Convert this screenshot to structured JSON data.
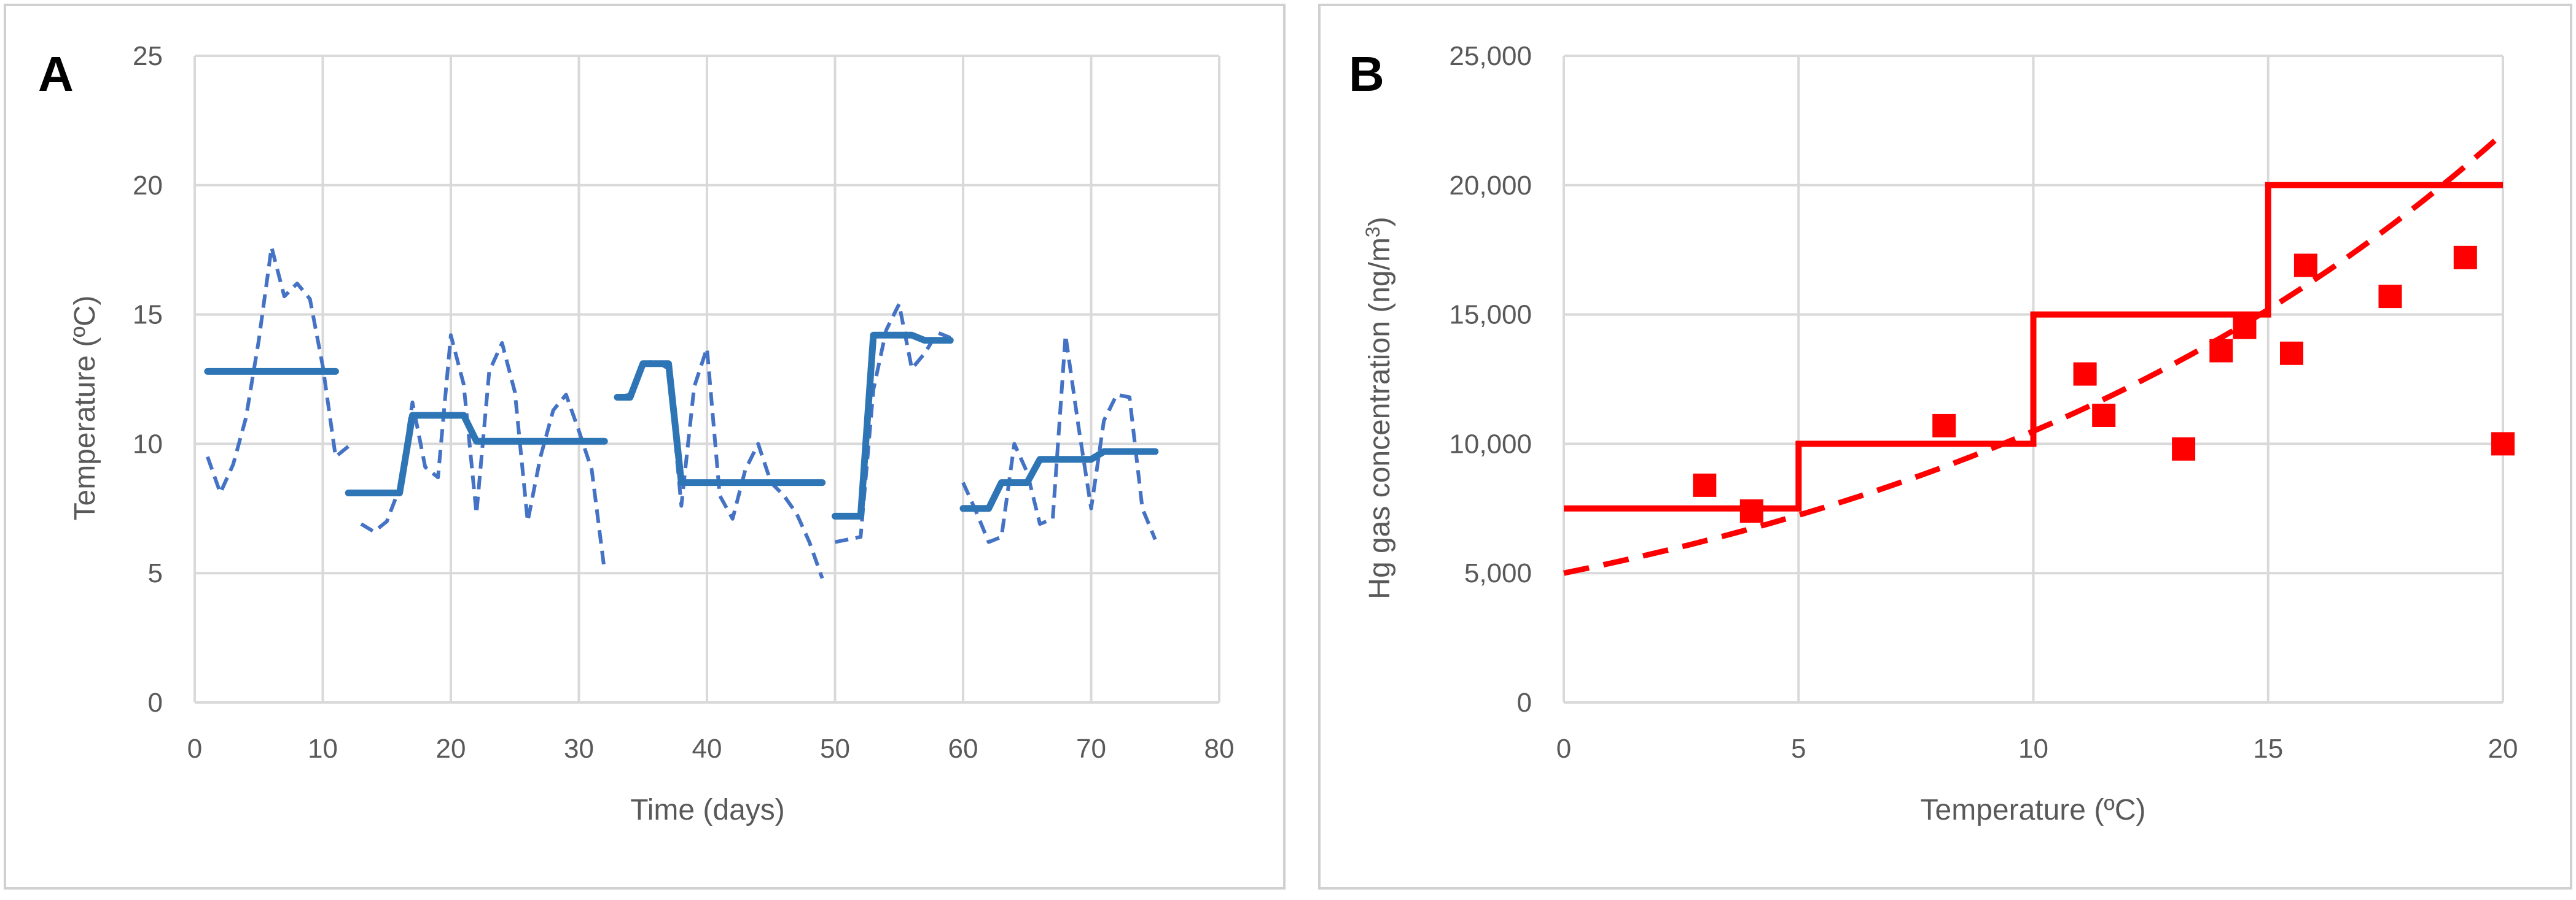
{
  "colors": {
    "panel_a_series": "#4472c4",
    "panel_a_step": "#2e75b6",
    "panel_b": "#ff0000",
    "grid": "#d9d9d9",
    "text": "#595959"
  },
  "chart_data": [
    {
      "panel_label": "A",
      "type": "line",
      "xlabel": "Time (days)",
      "ylabel": "Temperature (ºC)",
      "xlim": [
        0,
        80
      ],
      "ylim": [
        0,
        25
      ],
      "x_ticks": [
        "0",
        "10",
        "20",
        "30",
        "40",
        "50",
        "60",
        "70",
        "80"
      ],
      "y_ticks": [
        "0",
        "5",
        "10",
        "15",
        "20",
        "25"
      ],
      "grid": true,
      "legend": "none",
      "series": [
        {
          "style": "dashed",
          "color": "#4472c4",
          "segments": [
            [
              [
                1,
                9.5
              ],
              [
                2,
                8.1
              ],
              [
                3,
                9.2
              ],
              [
                4,
                11.0
              ],
              [
                5,
                14.0
              ],
              [
                6,
                17.6
              ],
              [
                7,
                15.7
              ],
              [
                8,
                16.2
              ],
              [
                9,
                15.6
              ],
              [
                10,
                13.0
              ],
              [
                11,
                9.5
              ],
              [
                12,
                9.9
              ]
            ],
            [
              [
                13,
                6.9
              ],
              [
                14,
                6.6
              ],
              [
                15,
                7.0
              ],
              [
                16,
                8.3
              ],
              [
                17,
                11.6
              ],
              [
                18,
                9.1
              ],
              [
                19,
                8.7
              ],
              [
                20,
                14.2
              ],
              [
                21,
                12.3
              ],
              [
                22,
                7.3
              ],
              [
                23,
                12.8
              ],
              [
                24,
                13.9
              ],
              [
                25,
                12.0
              ],
              [
                26,
                7.0
              ],
              [
                27,
                9.5
              ],
              [
                28,
                11.3
              ],
              [
                29,
                11.9
              ],
              [
                30,
                10.5
              ],
              [
                31,
                9.0
              ],
              [
                32,
                5.1
              ]
            ],
            [
              [
                33,
                11.8
              ],
              [
                34,
                11.9
              ],
              [
                35,
                13.1
              ],
              [
                36,
                13.2
              ],
              [
                37,
                12.9
              ],
              [
                38,
                7.6
              ],
              [
                39,
                12.2
              ],
              [
                40,
                13.7
              ],
              [
                41,
                8.0
              ],
              [
                42,
                7.1
              ],
              [
                43,
                9.0
              ],
              [
                44,
                10.0
              ],
              [
                45,
                8.5
              ],
              [
                46,
                8.0
              ],
              [
                47,
                7.3
              ],
              [
                48,
                6.2
              ],
              [
                49,
                4.8
              ]
            ],
            [
              [
                50,
                6.2
              ],
              [
                51,
                6.3
              ],
              [
                52,
                6.4
              ],
              [
                53,
                12.1
              ],
              [
                54,
                14.4
              ],
              [
                55,
                15.4
              ],
              [
                56,
                12.9
              ],
              [
                57,
                13.5
              ],
              [
                58,
                14.3
              ],
              [
                59,
                14.1
              ]
            ],
            [
              [
                60,
                8.5
              ],
              [
                61,
                7.4
              ],
              [
                62,
                6.2
              ],
              [
                63,
                6.4
              ],
              [
                64,
                10.0
              ],
              [
                65,
                8.9
              ],
              [
                66,
                6.9
              ],
              [
                67,
                7.1
              ],
              [
                68,
                14.2
              ],
              [
                69,
                10.7
              ],
              [
                70,
                7.5
              ],
              [
                71,
                10.9
              ],
              [
                72,
                11.9
              ],
              [
                73,
                11.8
              ],
              [
                74,
                7.5
              ],
              [
                75,
                6.3
              ]
            ]
          ]
        },
        {
          "style": "solid",
          "color": "#2e75b6",
          "segments": [
            [
              [
                1,
                12.8
              ],
              [
                11,
                12.8
              ]
            ],
            [
              [
                12,
                8.1
              ],
              [
                16,
                8.1
              ],
              [
                17,
                11.1
              ],
              [
                21,
                11.1
              ],
              [
                22,
                10.1
              ],
              [
                32,
                10.1
              ]
            ],
            [
              [
                33,
                11.8
              ],
              [
                34,
                11.8
              ],
              [
                35,
                13.1
              ],
              [
                37,
                13.1
              ],
              [
                38,
                8.5
              ],
              [
                49,
                8.5
              ]
            ],
            [
              [
                50,
                7.2
              ],
              [
                52,
                7.2
              ],
              [
                53,
                14.2
              ],
              [
                56,
                14.2
              ],
              [
                57,
                14.0
              ],
              [
                59,
                14.0
              ]
            ],
            [
              [
                60,
                7.5
              ],
              [
                62,
                7.5
              ],
              [
                63,
                8.5
              ],
              [
                65,
                8.5
              ],
              [
                66,
                9.4
              ],
              [
                70,
                9.4
              ],
              [
                71,
                9.7
              ],
              [
                75,
                9.7
              ]
            ]
          ]
        }
      ]
    },
    {
      "panel_label": "B",
      "type": "scatter",
      "xlabel": "Temperature (ºC)",
      "ylabel_main": "Hg gas concentration (ng/m",
      "ylabel_sup": "3",
      "ylabel_end": ")",
      "xlim": [
        0,
        20
      ],
      "ylim": [
        0,
        25000
      ],
      "x_ticks": [
        "0",
        "5",
        "10",
        "15",
        "20"
      ],
      "y_ticks": [
        "0",
        "5,000",
        "10,000",
        "15,000",
        "20,000",
        "25,000"
      ],
      "grid": true,
      "legend": "none",
      "points": [
        [
          3.0,
          8400
        ],
        [
          4.0,
          7400
        ],
        [
          8.1,
          10700
        ],
        [
          11.1,
          12700
        ],
        [
          11.5,
          11100
        ],
        [
          13.2,
          9800
        ],
        [
          14.0,
          13600
        ],
        [
          14.5,
          14500
        ],
        [
          15.5,
          13500
        ],
        [
          15.8,
          16900
        ],
        [
          17.6,
          15700
        ],
        [
          19.2,
          17200
        ],
        [
          20.0,
          10000
        ]
      ],
      "step_line": [
        [
          0,
          7500
        ],
        [
          5,
          7500
        ],
        [
          5,
          10000
        ],
        [
          10,
          10000
        ],
        [
          10,
          15000
        ],
        [
          15,
          15000
        ],
        [
          15,
          20000
        ],
        [
          20,
          20000
        ]
      ],
      "trend_line": {
        "style": "dashed",
        "form": "exponential",
        "y_at_0": 5000,
        "y_at_20": 22000
      }
    }
  ]
}
